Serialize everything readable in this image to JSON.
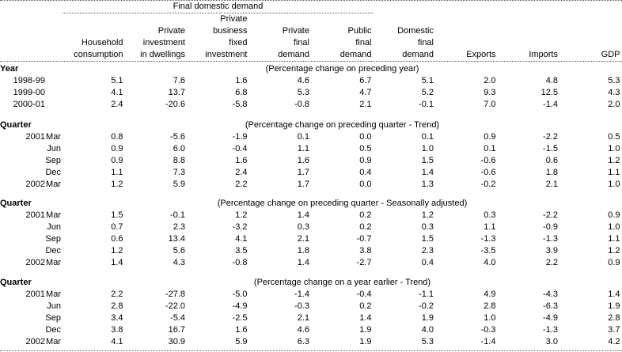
{
  "table": {
    "spanner_label": "Final domestic demand",
    "colors": {
      "text": "#000000",
      "rule": "#555555",
      "background": "#ffffff"
    },
    "columns": [
      {
        "id": "household-consumption",
        "lines": [
          "",
          "",
          "Household",
          "consumption"
        ]
      },
      {
        "id": "private-investment-in-dwellings",
        "lines": [
          "",
          "Private",
          "investment",
          "in dwellings"
        ]
      },
      {
        "id": "private-business-fixed-investment",
        "lines": [
          "Private",
          "business",
          "fixed",
          "investment"
        ]
      },
      {
        "id": "private-final-demand",
        "lines": [
          "",
          "Private",
          "final",
          "demand"
        ]
      },
      {
        "id": "public-final-demand",
        "lines": [
          "",
          "Public",
          "final",
          "demand"
        ]
      },
      {
        "id": "domestic-final-demand",
        "lines": [
          "",
          "Domestic",
          "final",
          "demand"
        ]
      },
      {
        "id": "exports",
        "lines": [
          "",
          "",
          "",
          "Exports"
        ]
      },
      {
        "id": "imports",
        "lines": [
          "",
          "",
          "",
          "Imports"
        ]
      },
      {
        "id": "gdp",
        "lines": [
          "",
          "",
          "",
          "GDP"
        ]
      }
    ],
    "sections": [
      {
        "label": "Year",
        "note": "(Percentage change on preceding year)",
        "rows": [
          {
            "year": "1998-99",
            "period": "",
            "values": [
              "5.1",
              "7.6",
              "1.6",
              "4.6",
              "6.7",
              "5.1",
              "2.0",
              "4.8",
              "5.3"
            ]
          },
          {
            "year": "1999-00",
            "period": "",
            "values": [
              "4.1",
              "13.7",
              "6.8",
              "5.3",
              "4.7",
              "5.2",
              "9.3",
              "12.5",
              "4.3"
            ]
          },
          {
            "year": "2000-01",
            "period": "",
            "values": [
              "2.4",
              "-20.6",
              "-5.8",
              "-0.8",
              "2.1",
              "-0.1",
              "7.0",
              "-1.4",
              "2.0"
            ]
          }
        ]
      },
      {
        "label": "Quarter",
        "note": "(Percentage change on preceding quarter - Trend)",
        "rows": [
          {
            "year": "2001",
            "period": "Mar",
            "values": [
              "0.8",
              "-5.6",
              "-1.9",
              "0.1",
              "0.0",
              "0.1",
              "0.9",
              "-2.2",
              "0.5"
            ]
          },
          {
            "year": "",
            "period": "Jun",
            "values": [
              "0.9",
              "6.0",
              "-0.4",
              "1.1",
              "0.5",
              "1.0",
              "0.1",
              "-1.5",
              "1.0"
            ]
          },
          {
            "year": "",
            "period": "Sep",
            "values": [
              "0.9",
              "8.8",
              "1.6",
              "1.6",
              "0.9",
              "1.5",
              "-0.6",
              "0.6",
              "1.2"
            ]
          },
          {
            "year": "",
            "period": "Dec",
            "values": [
              "1.1",
              "7.3",
              "2.4",
              "1.7",
              "0.4",
              "1.4",
              "-0.6",
              "1.8",
              "1.1"
            ]
          },
          {
            "year": "2002",
            "period": "Mar",
            "values": [
              "1.2",
              "5.9",
              "2.2",
              "1.7",
              "0.0",
              "1.3",
              "-0.2",
              "2.1",
              "1.0"
            ]
          }
        ]
      },
      {
        "label": "Quarter",
        "note": "(Percentage change on preceding quarter - Seasonally adjusted)",
        "rows": [
          {
            "year": "2001",
            "period": "Mar",
            "values": [
              "1.5",
              "-0.1",
              "1.2",
              "1.4",
              "0.2",
              "1.2",
              "0.3",
              "-2.2",
              "0.9"
            ]
          },
          {
            "year": "",
            "period": "Jun",
            "values": [
              "0.7",
              "2.3",
              "-3.2",
              "0.3",
              "0.2",
              "0.3",
              "1.1",
              "-0.9",
              "1.0"
            ]
          },
          {
            "year": "",
            "period": "Sep",
            "values": [
              "0.6",
              "13.4",
              "4.1",
              "2.1",
              "-0.7",
              "1.5",
              "-1.3",
              "-1.3",
              "1.1"
            ]
          },
          {
            "year": "",
            "period": "Dec",
            "values": [
              "1.2",
              "5.6",
              "3.5",
              "1.8",
              "3.8",
              "2.3",
              "-3.5",
              "3.9",
              "1.2"
            ]
          },
          {
            "year": "2002",
            "period": "Mar",
            "values": [
              "1.4",
              "4.3",
              "-0.8",
              "1.4",
              "-2.7",
              "0.4",
              "4.0",
              "2.2",
              "0.9"
            ]
          }
        ]
      },
      {
        "label": "Quarter",
        "note": "(Percentage change on a year earlier - Trend)",
        "rows": [
          {
            "year": "2001",
            "period": "Mar",
            "values": [
              "2.2",
              "-27.8",
              "-5.0",
              "-1.4",
              "-0.4",
              "-1.1",
              "4.9",
              "-4.3",
              "1.4"
            ]
          },
          {
            "year": "",
            "period": "Jun",
            "values": [
              "2.8",
              "-22.0",
              "-4.9",
              "-0.3",
              "0.2",
              "-0.2",
              "2.8",
              "-6.3",
              "1.9"
            ]
          },
          {
            "year": "",
            "period": "Sep",
            "values": [
              "3.4",
              "-5.4",
              "-2.5",
              "2.1",
              "1.4",
              "1.9",
              "1.0",
              "-4.9",
              "2.8"
            ]
          },
          {
            "year": "",
            "period": "Dec",
            "values": [
              "3.8",
              "16.7",
              "1.6",
              "4.6",
              "1.9",
              "4.0",
              "-0.3",
              "-1.3",
              "3.7"
            ]
          },
          {
            "year": "2002",
            "period": "Mar",
            "values": [
              "4.1",
              "30.9",
              "5.9",
              "6.3",
              "1.9",
              "5.3",
              "-1.4",
              "3.0",
              "4.2"
            ]
          }
        ]
      }
    ]
  }
}
